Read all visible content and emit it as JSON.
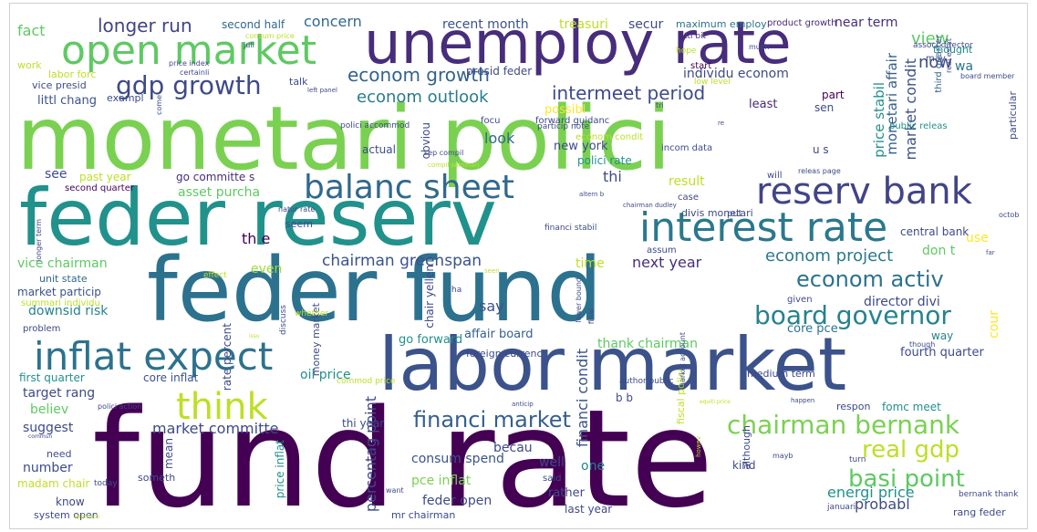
{
  "cloud": {
    "words": [
      {
        "text": "monetari polici",
        "color": "#7ad151"
      },
      {
        "text": "fund rate",
        "color": "#440154"
      },
      {
        "text": "feder reserv",
        "color": "#21918c"
      },
      {
        "text": "feder fund",
        "color": "#2c728e"
      },
      {
        "text": "labor market",
        "color": "#3b528b"
      },
      {
        "text": "unemploy rate",
        "color": "#472d7b"
      },
      {
        "text": "open market",
        "color": "#5ec962"
      },
      {
        "text": "interest rate",
        "color": "#2a788e"
      },
      {
        "text": "inflat expect",
        "color": "#2c728e"
      },
      {
        "text": "reserv bank",
        "color": "#414487"
      },
      {
        "text": "balanc sheet",
        "color": "#31688e"
      },
      {
        "text": "think",
        "color": "#bddf26"
      },
      {
        "text": "gdp growth",
        "color": "#3e4a89"
      },
      {
        "text": "board governor",
        "color": "#26828e"
      },
      {
        "text": "chairman bernank",
        "color": "#7ad151"
      },
      {
        "text": "financi market",
        "color": "#355f8d"
      },
      {
        "text": "basi point",
        "color": "#5ec962"
      },
      {
        "text": "real gdp",
        "color": "#bddf26"
      },
      {
        "text": "econom activ",
        "color": "#2c728e"
      },
      {
        "text": "econom growth",
        "color": "#33638d"
      },
      {
        "text": "intermeet period",
        "color": "#3e4a89"
      },
      {
        "text": "longer run",
        "color": "#414487"
      },
      {
        "text": "econom outlook",
        "color": "#287c8e"
      },
      {
        "text": "econom project",
        "color": "#2a788e"
      },
      {
        "text": "chairman greenspan",
        "color": "#3b528b"
      },
      {
        "text": "market committe",
        "color": "#3e4a89"
      },
      {
        "text": "concern",
        "color": "#31688e"
      },
      {
        "text": "recent month",
        "color": "#3b528b"
      },
      {
        "text": "treasuri",
        "color": "#bddf26"
      },
      {
        "text": "secur",
        "color": "#3e4a89"
      },
      {
        "text": "maximum employ",
        "color": "#2c728e"
      },
      {
        "text": "product growth",
        "color": "#482878"
      },
      {
        "text": "near term",
        "color": "#472d7b"
      },
      {
        "text": "fact",
        "color": "#5ec962"
      },
      {
        "text": "second half",
        "color": "#31688e"
      },
      {
        "text": "presid feder",
        "color": "#3e4a89"
      },
      {
        "text": "individu econom",
        "color": "#3e4a89"
      },
      {
        "text": "monetari affair",
        "color": "#355f8d"
      },
      {
        "text": "market condit",
        "color": "#3b528b"
      },
      {
        "text": "price stabil",
        "color": "#21918c"
      },
      {
        "text": "view",
        "color": "#5ec962"
      },
      {
        "text": "now",
        "color": "#3e4a89"
      },
      {
        "text": "wa",
        "color": "#2c728e"
      },
      {
        "text": "may",
        "color": "#3e4a89"
      },
      {
        "text": "thought",
        "color": "#21918c"
      },
      {
        "text": "start",
        "color": "#440154"
      },
      {
        "text": "part",
        "color": "#440154"
      },
      {
        "text": "sen",
        "color": "#3e4a89"
      },
      {
        "text": "least",
        "color": "#482878"
      },
      {
        "text": "third quarter",
        "color": "#355f8d"
      },
      {
        "text": "littl chang",
        "color": "#3b528b"
      },
      {
        "text": "littl bit",
        "color": "#472d7b"
      },
      {
        "text": "look",
        "color": "#31688e"
      },
      {
        "text": "possibl",
        "color": "#fde725"
      },
      {
        "text": "new york",
        "color": "#3e4a89"
      },
      {
        "text": "polici rate",
        "color": "#21918c"
      },
      {
        "text": "particip note",
        "color": "#3e4a89"
      },
      {
        "text": "see",
        "color": "#3e4a89"
      },
      {
        "text": "go committe s",
        "color": "#472d7b"
      },
      {
        "text": "past year",
        "color": "#bddf26"
      },
      {
        "text": "second quarter",
        "color": "#440154"
      },
      {
        "text": "asset purcha",
        "color": "#5ec962"
      },
      {
        "text": "result",
        "color": "#bddf26"
      },
      {
        "text": "thi",
        "color": "#3e4a89"
      },
      {
        "text": "will",
        "color": "#3e4a89"
      },
      {
        "text": "u s",
        "color": "#3e4a89"
      },
      {
        "text": "th e",
        "color": "#440154"
      },
      {
        "text": "vice chairman",
        "color": "#5ec962"
      },
      {
        "text": "unit state",
        "color": "#31688e"
      },
      {
        "text": "market particip",
        "color": "#3b528b"
      },
      {
        "text": "downsid risk",
        "color": "#26828e"
      },
      {
        "text": "even",
        "color": "#a0da39"
      },
      {
        "text": "next year",
        "color": "#472d7b"
      },
      {
        "text": "time",
        "color": "#bddf26"
      },
      {
        "text": "say",
        "color": "#3b528b"
      },
      {
        "text": "don t",
        "color": "#5ec962"
      },
      {
        "text": "use",
        "color": "#fde725"
      },
      {
        "text": "central bank",
        "color": "#3e4a89"
      },
      {
        "text": "director divi",
        "color": "#3e4a89"
      },
      {
        "text": "core pce",
        "color": "#2c728e"
      },
      {
        "text": "fourth quarter",
        "color": "#3e4a89"
      },
      {
        "text": "way",
        "color": "#26828e"
      },
      {
        "text": "cour",
        "color": "#fde725"
      },
      {
        "text": "affair board",
        "color": "#355f8d"
      },
      {
        "text": "thank chairman",
        "color": "#5ec962"
      },
      {
        "text": "medium term",
        "color": "#3e4a89"
      },
      {
        "text": "go forward",
        "color": "#21918c"
      },
      {
        "text": "foreign currenc",
        "color": "#3e4a89"
      },
      {
        "text": "first quarter",
        "color": "#21918c"
      },
      {
        "text": "core inflat",
        "color": "#3b528b"
      },
      {
        "text": "oil price",
        "color": "#21918c"
      },
      {
        "text": "target rang",
        "color": "#3e4a89"
      },
      {
        "text": "believ",
        "color": "#5ec962"
      },
      {
        "text": "suggest",
        "color": "#3e4a89"
      },
      {
        "text": "financi condit",
        "color": "#3b528b"
      },
      {
        "text": "b b",
        "color": "#3e4a89"
      },
      {
        "text": "fomc meet",
        "color": "#21918c"
      },
      {
        "text": "respon",
        "color": "#3e4a89"
      },
      {
        "text": "thi year",
        "color": "#3e4a89"
      },
      {
        "text": "percentag point",
        "color": "#3e4a89"
      },
      {
        "text": "consum spend",
        "color": "#3b528b"
      },
      {
        "text": "pce inflat",
        "color": "#7ad151"
      },
      {
        "text": "feder open",
        "color": "#3e4a89"
      },
      {
        "text": "becau",
        "color": "#3e4a89"
      },
      {
        "text": "well",
        "color": "#3e4a89"
      },
      {
        "text": "one",
        "color": "#26828e"
      },
      {
        "text": "energi price",
        "color": "#21918c"
      },
      {
        "text": "probabl",
        "color": "#3e4a89"
      },
      {
        "text": "rather",
        "color": "#3e4a89"
      },
      {
        "text": "last year",
        "color": "#3e4a89"
      },
      {
        "text": "number",
        "color": "#3e4a89"
      },
      {
        "text": "madam chair",
        "color": "#bddf26"
      },
      {
        "text": "know",
        "color": "#3e4a89"
      },
      {
        "text": "system open",
        "color": "#3e4a89"
      },
      {
        "text": "mr chairman",
        "color": "#3e4a89"
      },
      {
        "text": "price inflat",
        "color": "#21918c"
      },
      {
        "text": "mean",
        "color": "#3e4a89"
      },
      {
        "text": "someth",
        "color": "#3e4a89"
      },
      {
        "text": "need",
        "color": "#3e4a89"
      },
      {
        "text": "work",
        "color": "#bddf26"
      },
      {
        "text": "labor forc",
        "color": "#bddf26"
      },
      {
        "text": "vice presid",
        "color": "#3e4a89"
      },
      {
        "text": "exampl",
        "color": "#3e4a89"
      },
      {
        "text": "talk",
        "color": "#3e4a89"
      },
      {
        "text": "obviou",
        "color": "#3e4a89"
      },
      {
        "text": "actual",
        "color": "#3e4a89"
      },
      {
        "text": "focu",
        "color": "#3e4a89"
      },
      {
        "text": "incom data",
        "color": "#3e4a89"
      },
      {
        "text": "case",
        "color": "#3e4a89"
      },
      {
        "text": "divis monetari",
        "color": "#3e4a89"
      },
      {
        "text": "put",
        "color": "#3e4a89"
      },
      {
        "text": "public releas",
        "color": "#21918c"
      },
      {
        "text": "particular",
        "color": "#3e4a89"
      },
      {
        "text": "given",
        "color": "#3e4a89"
      },
      {
        "text": "seem",
        "color": "#3e4a89"
      },
      {
        "text": "chair yellen",
        "color": "#3e4a89"
      },
      {
        "text": "rate percent",
        "color": "#3e4a89"
      },
      {
        "text": "money market",
        "color": "#3e4a89"
      },
      {
        "text": "natur rate",
        "color": "#3e4a89"
      },
      {
        "text": "effect",
        "color": "#bddf26"
      },
      {
        "text": "summari individu",
        "color": "#bddf26"
      },
      {
        "text": "problem",
        "color": "#3e4a89"
      },
      {
        "text": "financi stabil",
        "color": "#3e4a89"
      },
      {
        "text": "assum",
        "color": "#3e4a89"
      },
      {
        "text": "author public",
        "color": "#3e4a89"
      },
      {
        "text": "fiscal polici",
        "color": "#bddf26"
      },
      {
        "text": "although",
        "color": "#3e4a89"
      },
      {
        "text": "turn",
        "color": "#3e4a89"
      },
      {
        "text": "januari",
        "color": "#3e4a89"
      },
      {
        "text": "bernank thank",
        "color": "#3e4a89"
      },
      {
        "text": "rang feder",
        "color": "#3e4a89"
      },
      {
        "text": "said",
        "color": "#3e4a89"
      },
      {
        "text": "kind",
        "color": "#3e4a89"
      },
      {
        "text": "today",
        "color": "#3e4a89"
      },
      {
        "text": "polici action",
        "color": "#3e4a89"
      },
      {
        "text": "lower bound",
        "color": "#3e4a89"
      },
      {
        "text": "want",
        "color": "#3e4a89"
      },
      {
        "text": "octob",
        "color": "#3e4a89"
      },
      {
        "text": "low level",
        "color": "#bddf26"
      },
      {
        "text": "hope",
        "color": "#bddf26"
      },
      {
        "text": "much",
        "color": "#3e4a89"
      },
      {
        "text": "associ director",
        "color": "#3e4a89"
      },
      {
        "text": "real estat",
        "color": "#3e4a89"
      },
      {
        "text": "board member",
        "color": "#3e4a89"
      },
      {
        "text": "consum price",
        "color": "#bddf26"
      },
      {
        "text": "juli",
        "color": "#3e4a89"
      },
      {
        "text": "price index",
        "color": "#3e4a89"
      },
      {
        "text": "certainli",
        "color": "#3e4a89"
      },
      {
        "text": "left panel",
        "color": "#3e4a89"
      },
      {
        "text": "tri",
        "color": "#3e4a89"
      },
      {
        "text": "forward guidanc",
        "color": "#3e4a89"
      },
      {
        "text": "econom condit",
        "color": "#bddf26"
      },
      {
        "text": "sep compil",
        "color": "#3e4a89"
      },
      {
        "text": "compil summari",
        "color": "#bddf26"
      },
      {
        "text": "releas page",
        "color": "#3e4a89"
      },
      {
        "text": "altern b",
        "color": "#3e4a89"
      },
      {
        "text": "polici accommod",
        "color": "#3e4a89"
      },
      {
        "text": "come",
        "color": "#3e4a89"
      },
      {
        "text": "longer term",
        "color": "#3e4a89"
      },
      {
        "text": "ha",
        "color": "#3e4a89"
      },
      {
        "text": "whether",
        "color": "#bddf26"
      },
      {
        "text": "commod price",
        "color": "#bddf26"
      },
      {
        "text": "market account",
        "color": "#3e4a89"
      },
      {
        "text": "though",
        "color": "#3e4a89"
      },
      {
        "text": "final",
        "color": "#3e4a89"
      },
      {
        "text": "anticip",
        "color": "#3e4a89"
      },
      {
        "text": "mayb",
        "color": "#3e4a89"
      },
      {
        "text": "happen",
        "color": "#3e4a89"
      },
      {
        "text": "far",
        "color": "#3e4a89"
      },
      {
        "text": "seen",
        "color": "#bddf26"
      },
      {
        "text": "re",
        "color": "#3e4a89"
      },
      {
        "text": "discuss",
        "color": "#3e4a89"
      },
      {
        "text": "chairman dudley",
        "color": "#3e4a89"
      },
      {
        "text": "commun",
        "color": "#3e4a89"
      },
      {
        "text": "approach",
        "color": "#bddf26"
      },
      {
        "text": "issu",
        "color": "#bddf26"
      },
      {
        "text": "equiti price",
        "color": "#bddf26"
      },
      {
        "text": "howev",
        "color": "#bddf26"
      }
    ]
  }
}
